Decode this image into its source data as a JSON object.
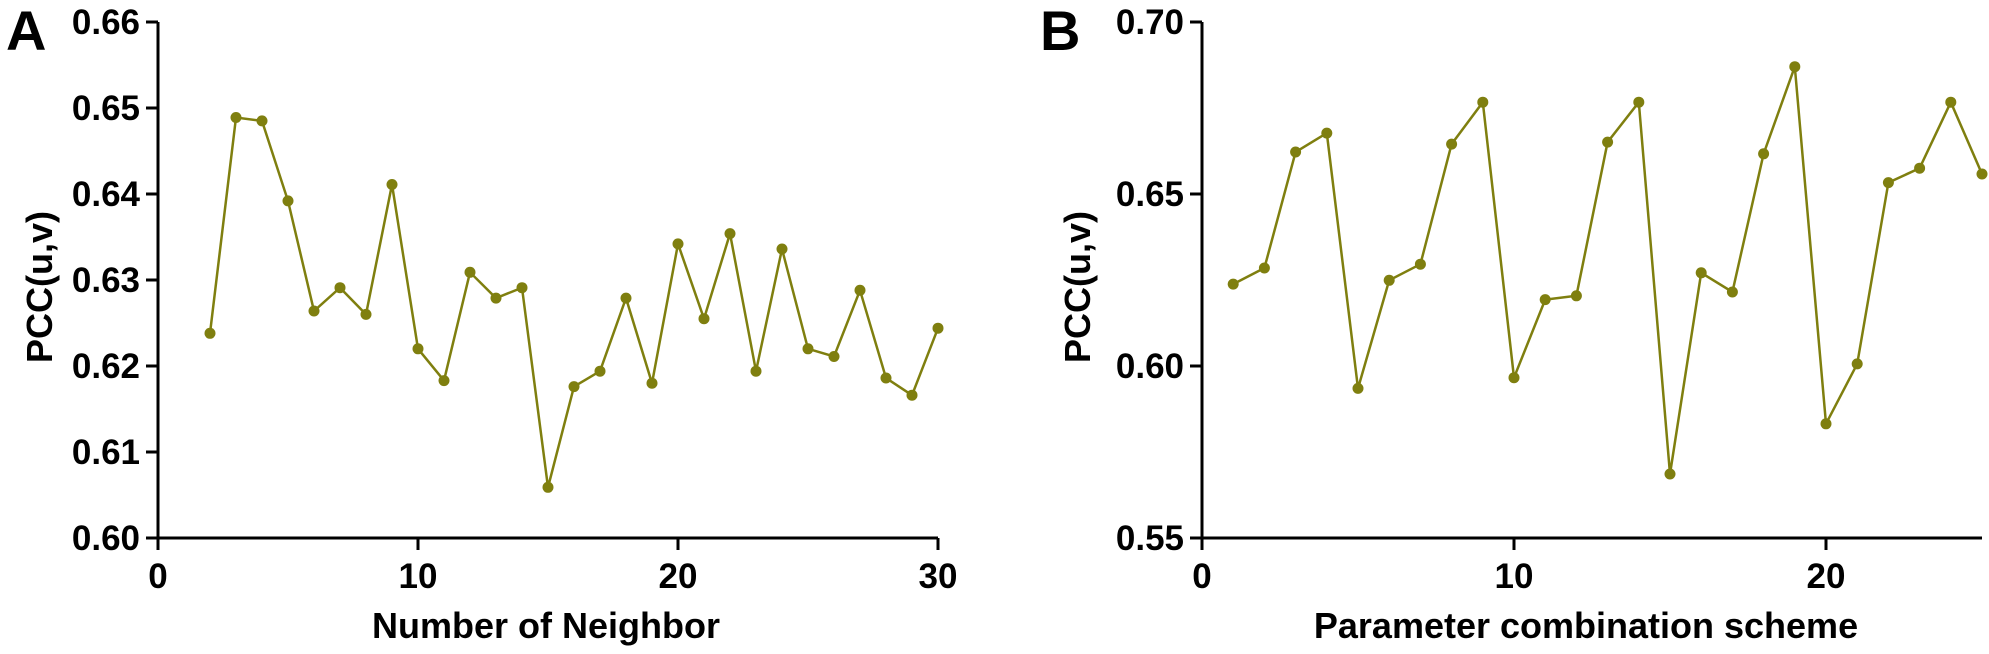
{
  "chart_data": [
    {
      "type": "line",
      "panel_label": "A",
      "xlabel": "Number of Neighbor",
      "ylabel": "PCC(u,v)",
      "xlim": [
        0,
        30
      ],
      "ylim": [
        0.6,
        0.66
      ],
      "xticks": [
        0,
        10,
        20,
        30
      ],
      "yticks": [
        0.6,
        0.61,
        0.62,
        0.63,
        0.64,
        0.65,
        0.66
      ],
      "xtick_labels": [
        "0",
        "10",
        "20",
        "30"
      ],
      "ytick_labels": [
        "0.60",
        "0.61",
        "0.62",
        "0.63",
        "0.64",
        "0.65",
        "0.66"
      ],
      "color": "#7f7f0f",
      "x": [
        2,
        3,
        4,
        5,
        6,
        7,
        8,
        9,
        10,
        11,
        12,
        13,
        14,
        15,
        16,
        17,
        18,
        19,
        20,
        21,
        22,
        23,
        24,
        25,
        26,
        27,
        28,
        29,
        30
      ],
      "y": [
        0.6238,
        0.6489,
        0.6485,
        0.6392,
        0.6264,
        0.6291,
        0.626,
        0.6411,
        0.622,
        0.6183,
        0.6309,
        0.6279,
        0.6291,
        0.6059,
        0.6176,
        0.6194,
        0.6279,
        0.618,
        0.6342,
        0.6255,
        0.6354,
        0.6194,
        0.6336,
        0.622,
        0.6211,
        0.6288,
        0.6186,
        0.6166,
        0.6244
      ],
      "grid": false
    },
    {
      "type": "line",
      "panel_label": "B",
      "xlabel": "Parameter combination scheme",
      "ylabel": "PCC(u,v)",
      "xlim": [
        0,
        25
      ],
      "ylim": [
        0.55,
        0.7
      ],
      "xticks": [
        0,
        10,
        20
      ],
      "yticks": [
        0.55,
        0.6,
        0.65,
        0.7
      ],
      "xtick_labels": [
        "0",
        "10",
        "20"
      ],
      "ytick_labels": [
        "0.55",
        "0.60",
        "0.65",
        "0.70"
      ],
      "color": "#7f7f0f",
      "x": [
        1,
        2,
        3,
        4,
        5,
        6,
        7,
        8,
        9,
        10,
        11,
        12,
        13,
        14,
        15,
        16,
        17,
        18,
        19,
        20,
        21,
        22,
        23,
        24,
        25
      ],
      "y": [
        0.6238,
        0.6285,
        0.6622,
        0.6677,
        0.5935,
        0.6249,
        0.6296,
        0.6645,
        0.6767,
        0.5966,
        0.6193,
        0.6204,
        0.6651,
        0.6767,
        0.5686,
        0.6271,
        0.6215,
        0.6617,
        0.687,
        0.5832,
        0.6006,
        0.6533,
        0.6575,
        0.6767,
        0.6558
      ],
      "grid": false
    }
  ]
}
